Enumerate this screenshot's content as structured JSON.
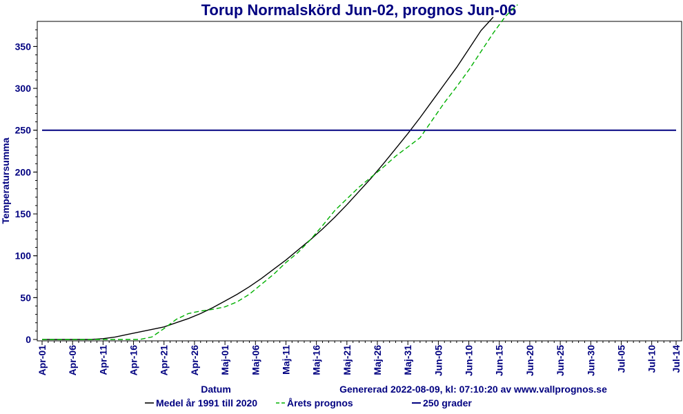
{
  "chart_data": {
    "type": "line",
    "title": "Torup Normalskörd Jun-02, prognos Jun-06",
    "xlabel": "Datum",
    "ylabel": "Temperatursumma",
    "footer": "Genererad 2022-08-09, kl: 07:10:20 av www.vallprognos.se",
    "ylim": [
      0,
      380
    ],
    "y_ticks": [
      0,
      50,
      100,
      150,
      200,
      250,
      300,
      350
    ],
    "x_ticks": [
      "Apr-01",
      "Apr-06",
      "Apr-11",
      "Apr-16",
      "Apr-21",
      "Apr-26",
      "Maj-01",
      "Maj-06",
      "Maj-11",
      "Maj-16",
      "Maj-21",
      "Maj-26",
      "Maj-31",
      "Jun-05",
      "Jun-10",
      "Jun-15",
      "Jun-20",
      "Jun-25",
      "Jun-30",
      "Jul-05",
      "Jul-10",
      "Jul-14"
    ],
    "x_range_days": [
      0,
      104
    ],
    "grid": false,
    "legend_position": "bottom",
    "series": [
      {
        "name": "Medel år 1991 till 2020",
        "color": "#000000",
        "style": "solid",
        "points": [
          [
            0,
            0
          ],
          [
            8,
            0
          ],
          [
            10,
            1
          ],
          [
            12,
            3
          ],
          [
            14,
            6
          ],
          [
            16,
            9
          ],
          [
            18,
            12
          ],
          [
            20,
            15
          ],
          [
            22,
            20
          ],
          [
            24,
            25
          ],
          [
            26,
            31
          ],
          [
            28,
            38
          ],
          [
            30,
            46
          ],
          [
            32,
            54
          ],
          [
            34,
            63
          ],
          [
            36,
            73
          ],
          [
            38,
            84
          ],
          [
            40,
            95
          ],
          [
            42,
            107
          ],
          [
            44,
            119
          ],
          [
            46,
            132
          ],
          [
            48,
            146
          ],
          [
            50,
            161
          ],
          [
            52,
            177
          ],
          [
            54,
            193
          ],
          [
            56,
            210
          ],
          [
            58,
            228
          ],
          [
            60,
            246
          ],
          [
            62,
            265
          ],
          [
            64,
            285
          ],
          [
            66,
            305
          ],
          [
            68,
            325
          ],
          [
            70,
            347
          ],
          [
            72,
            369
          ],
          [
            74,
            385
          ]
        ]
      },
      {
        "name": "Årets prognos",
        "color": "#00b000",
        "style": "dashed",
        "points": [
          [
            0,
            0
          ],
          [
            16,
            0
          ],
          [
            18,
            3
          ],
          [
            20,
            13
          ],
          [
            22,
            24
          ],
          [
            24,
            31
          ],
          [
            26,
            34
          ],
          [
            28,
            36
          ],
          [
            30,
            39
          ],
          [
            32,
            45
          ],
          [
            34,
            54
          ],
          [
            36,
            66
          ],
          [
            38,
            78
          ],
          [
            40,
            92
          ],
          [
            42,
            104
          ],
          [
            44,
            119
          ],
          [
            46,
            136
          ],
          [
            48,
            154
          ],
          [
            50,
            168
          ],
          [
            52,
            182
          ],
          [
            54,
            194
          ],
          [
            56,
            206
          ],
          [
            58,
            219
          ],
          [
            60,
            230
          ],
          [
            62,
            241
          ],
          [
            64,
            262
          ],
          [
            66,
            283
          ],
          [
            68,
            302
          ],
          [
            70,
            322
          ],
          [
            72,
            344
          ],
          [
            74,
            366
          ],
          [
            76,
            386
          ],
          [
            78,
            400
          ]
        ]
      },
      {
        "name": "250 grader",
        "color": "#000080",
        "style": "solid",
        "constant": 250
      }
    ]
  }
}
